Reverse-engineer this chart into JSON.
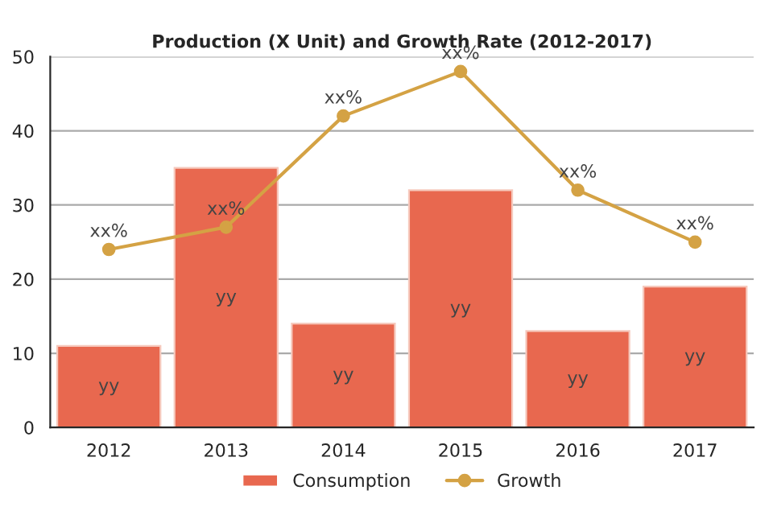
{
  "chart_data": {
    "type": "bar",
    "title": "Production (X Unit) and Growth Rate (2012-2017)",
    "categories": [
      "2012",
      "2013",
      "2014",
      "2015",
      "2016",
      "2017"
    ],
    "series": [
      {
        "name": "Consumption",
        "color": "#e8684f",
        "values": [
          11,
          35,
          14,
          32,
          13,
          19
        ],
        "value_labels": [
          "yy",
          "yy",
          "yy",
          "yy",
          "yy",
          "yy"
        ]
      },
      {
        "name": "Growth",
        "type": "line",
        "color": "#d4a244",
        "values": [
          24,
          27,
          42,
          48,
          32,
          25
        ],
        "value_labels": [
          "xx%",
          "xx%",
          "xx%",
          "xx%",
          "xx%",
          "xx%"
        ],
        "marker": "circle"
      }
    ],
    "ylim": [
      0,
      50
    ],
    "yticks": [
      0,
      10,
      20,
      30,
      40,
      50
    ],
    "grid": "y",
    "legend": "bottom"
  }
}
